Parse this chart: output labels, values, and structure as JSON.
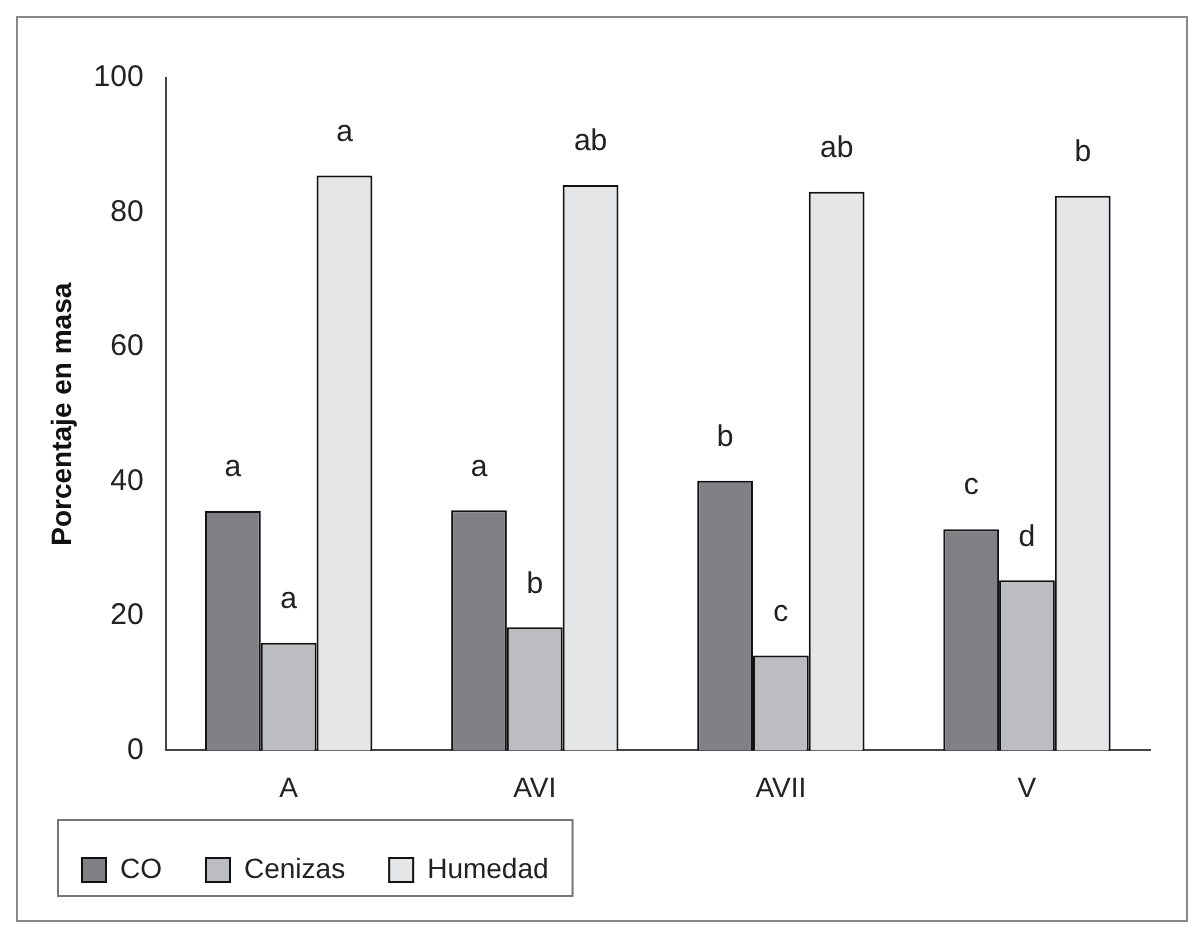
{
  "chart_data": {
    "type": "bar",
    "ylabel": "Porcentaje en masa",
    "categories": [
      "A",
      "AVI",
      "AVII",
      "V"
    ],
    "series": [
      {
        "name": "CO",
        "color": "#808085",
        "values": [
          35.6,
          35.7,
          40.1,
          32.9
        ],
        "value_labels": [
          "a",
          "a",
          "b",
          "c"
        ]
      },
      {
        "name": "Cenizas",
        "color": "#bcbdc1",
        "values": [
          16.0,
          18.3,
          14.1,
          25.3
        ],
        "value_labels": [
          "a",
          "b",
          "c",
          "d"
        ]
      },
      {
        "name": "Humedad",
        "color": "#e5e6e8",
        "values": [
          85.5,
          84.1,
          83.1,
          82.5
        ],
        "value_labels": [
          "a",
          "ab",
          "ab",
          "b"
        ]
      }
    ],
    "ylim": [
      0,
      100
    ],
    "yticks": [
      0,
      20,
      40,
      60,
      80,
      100
    ],
    "grid": false,
    "legend": "bottom"
  }
}
